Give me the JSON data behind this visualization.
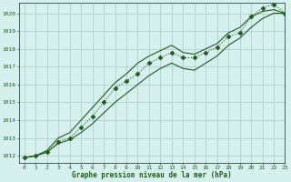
{
  "title": "Graphe pression niveau de la mer (hPa)",
  "bg_color": "#d6f0ee",
  "plot_bg_color": "#d6f0ee",
  "grid_color": "#b0cece",
  "line_color": "#1e5c1e",
  "text_color": "#1e5c1e",
  "xmin": -0.5,
  "xmax": 23,
  "ymin": 1011.6,
  "ymax": 1020.6,
  "yticks": [
    1012,
    1013,
    1014,
    1015,
    1016,
    1017,
    1018,
    1019,
    1020
  ],
  "xticks": [
    0,
    1,
    2,
    3,
    4,
    5,
    6,
    7,
    8,
    9,
    10,
    11,
    12,
    13,
    14,
    15,
    16,
    17,
    18,
    19,
    20,
    21,
    22,
    23
  ],
  "series": [
    {
      "x": [
        0,
        1,
        2,
        3,
        4,
        5,
        6,
        7,
        8,
        9,
        10,
        11,
        12,
        13,
        14,
        15,
        16,
        17,
        18,
        19,
        20,
        21,
        22,
        23
      ],
      "y": [
        1011.9,
        1012.0,
        1012.2,
        1012.8,
        1013.0,
        1013.6,
        1014.2,
        1015.0,
        1015.8,
        1016.2,
        1016.6,
        1017.2,
        1017.5,
        1017.8,
        1017.5,
        1017.5,
        1017.8,
        1018.1,
        1018.7,
        1018.9,
        1019.8,
        1020.3,
        1020.5,
        1020.0
      ],
      "linestyle": "dotted",
      "marker": "D",
      "markersize": 2.5
    },
    {
      "x": [
        0,
        1,
        2,
        3,
        4,
        5,
        6,
        7,
        8,
        9,
        10,
        11,
        12,
        13,
        14,
        15,
        16,
        17,
        18,
        19,
        20,
        21,
        22,
        23
      ],
      "y": [
        1011.9,
        1012.0,
        1012.3,
        1013.0,
        1013.3,
        1014.0,
        1014.7,
        1015.4,
        1016.1,
        1016.6,
        1017.2,
        1017.6,
        1017.9,
        1018.2,
        1017.8,
        1017.7,
        1018.0,
        1018.3,
        1018.9,
        1019.2,
        1019.8,
        1020.1,
        1020.2,
        1020.0
      ],
      "linestyle": "solid",
      "marker": null,
      "markersize": 0
    },
    {
      "x": [
        0,
        1,
        2,
        3,
        4,
        5,
        6,
        7,
        8,
        9,
        10,
        11,
        12,
        13,
        14,
        15,
        16,
        17,
        18,
        19,
        20,
        21,
        22,
        23
      ],
      "y": [
        1011.9,
        1012.0,
        1012.2,
        1012.7,
        1012.9,
        1013.3,
        1013.8,
        1014.4,
        1015.0,
        1015.5,
        1016.0,
        1016.5,
        1016.9,
        1017.2,
        1016.9,
        1016.8,
        1017.2,
        1017.6,
        1018.2,
        1018.6,
        1019.2,
        1019.7,
        1020.0,
        1020.0
      ],
      "linestyle": "solid",
      "marker": null,
      "markersize": 0
    }
  ]
}
